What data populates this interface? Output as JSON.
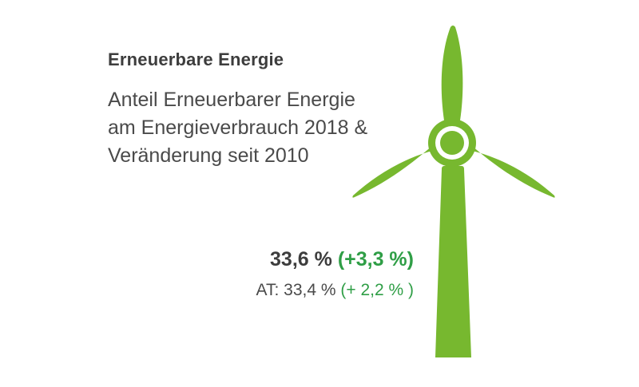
{
  "heading": {
    "title": "Erneuerbare Energie",
    "subtitle_lines": [
      "Anteil Erneuerbarer Energie",
      "am Energieverbrauch 2018 &",
      "Veränderung seit 2010"
    ]
  },
  "metrics": {
    "main_value": "33,6 %",
    "main_change": "(+3,3 %)",
    "at_value": "AT: 33,4 %",
    "at_change": "(+ 2,2 % )"
  },
  "colors": {
    "turbine_green": "#77b82f",
    "positive_change": "#2f9e46",
    "text_dark": "#3d3d3d"
  },
  "graphic": {
    "icon": "wind-turbine-icon"
  }
}
